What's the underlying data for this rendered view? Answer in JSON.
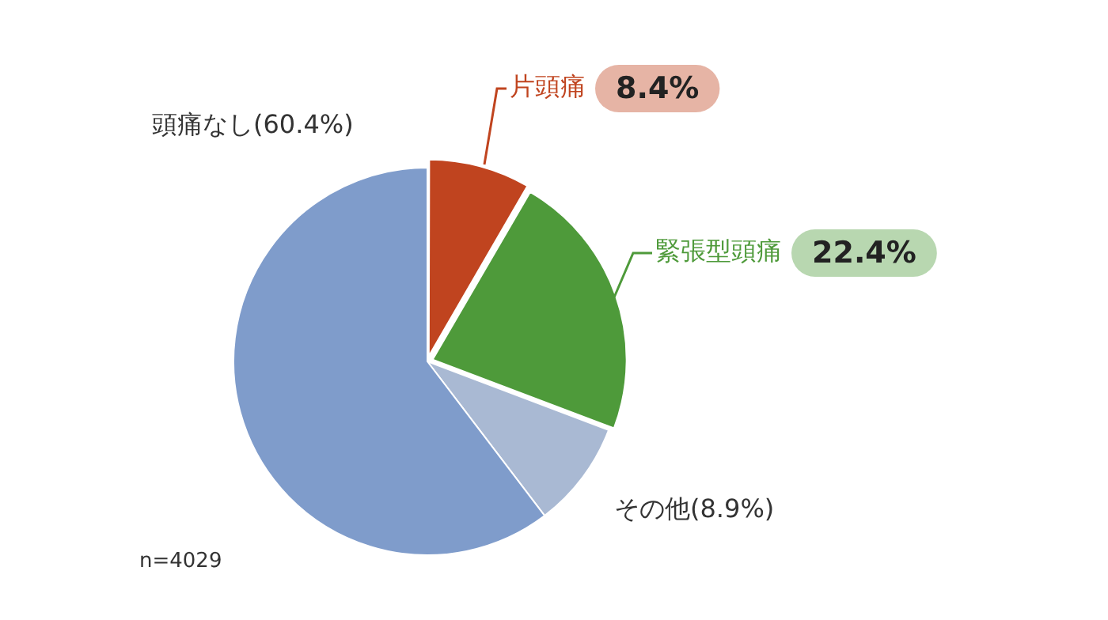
{
  "chart_data": {
    "type": "pie",
    "categories": [
      "片頭痛",
      "緊張型頭痛",
      "その他",
      "頭痛なし"
    ],
    "values": [
      8.4,
      22.4,
      8.9,
      60.4
    ],
    "colors": [
      "#c0441f",
      "#4e9a3a",
      "#a9b9d3",
      "#7f9ccb"
    ],
    "value_labels": [
      "8.4%",
      "22.4%",
      "(8.9%)",
      "(60.4%)"
    ],
    "annotations": [
      "n=4029"
    ],
    "legend": false
  }
}
